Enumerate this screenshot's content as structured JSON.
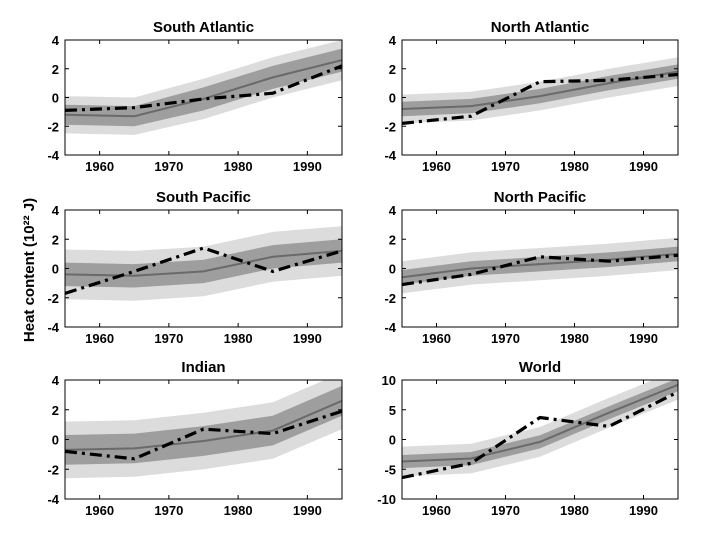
{
  "figure": {
    "ylabel": "Heat content (10²² J)"
  },
  "style": {
    "outer_band": "#dcdcdc",
    "inner_band": "#9e9e9e",
    "model_line": "#6a6a6a",
    "observed_line": "#000000",
    "axes": "#000000"
  },
  "chart_data": [
    {
      "type": "line",
      "title": "South Atlantic",
      "xlim": [
        1955,
        1995
      ],
      "ylim": [
        -4,
        4
      ],
      "xticks": [
        1960,
        1970,
        1980,
        1990
      ],
      "yticks": [
        -4,
        -2,
        0,
        2,
        4
      ],
      "x": [
        1955,
        1965,
        1975,
        1985,
        1995
      ],
      "model_mean": [
        -1.2,
        -1.3,
        -0.1,
        1.4,
        2.6
      ],
      "inner_band": {
        "lower": [
          -1.9,
          -2.0,
          -0.9,
          0.6,
          1.8
        ],
        "upper": [
          -0.5,
          -0.6,
          0.7,
          2.2,
          3.4
        ]
      },
      "outer_band": {
        "lower": [
          -2.5,
          -2.6,
          -1.5,
          0.0,
          1.2
        ],
        "upper": [
          0.1,
          0.0,
          1.3,
          2.8,
          4.0
        ]
      },
      "observed": {
        "x": [
          1955,
          1965,
          1975,
          1985,
          1995
        ],
        "y": [
          -0.9,
          -0.7,
          -0.1,
          0.3,
          2.2
        ]
      }
    },
    {
      "type": "line",
      "title": "North Atlantic",
      "xlim": [
        1955,
        1995
      ],
      "ylim": [
        -4,
        4
      ],
      "xticks": [
        1960,
        1970,
        1980,
        1990
      ],
      "yticks": [
        -4,
        -2,
        0,
        2,
        4
      ],
      "x": [
        1955,
        1965,
        1975,
        1985,
        1995
      ],
      "model_mean": [
        -0.8,
        -0.6,
        0.1,
        1.0,
        1.8
      ],
      "inner_band": {
        "lower": [
          -1.3,
          -1.1,
          -0.4,
          0.5,
          1.3
        ],
        "upper": [
          -0.3,
          -0.1,
          0.6,
          1.5,
          2.3
        ]
      },
      "outer_band": {
        "lower": [
          -1.8,
          -1.6,
          -0.9,
          0.0,
          0.8
        ],
        "upper": [
          0.2,
          0.4,
          1.1,
          2.0,
          2.8
        ]
      },
      "observed": {
        "x": [
          1955,
          1965,
          1975,
          1985,
          1995
        ],
        "y": [
          -1.8,
          -1.3,
          1.1,
          1.2,
          1.6
        ]
      }
    },
    {
      "type": "line",
      "title": "South Pacific",
      "xlim": [
        1955,
        1995
      ],
      "ylim": [
        -4,
        4
      ],
      "xticks": [
        1960,
        1970,
        1980,
        1990
      ],
      "yticks": [
        -4,
        -2,
        0,
        2,
        4
      ],
      "x": [
        1955,
        1965,
        1975,
        1985,
        1995
      ],
      "model_mean": [
        -0.4,
        -0.5,
        -0.2,
        0.8,
        1.2
      ],
      "inner_band": {
        "lower": [
          -1.2,
          -1.3,
          -1.0,
          0.0,
          0.4
        ],
        "upper": [
          0.4,
          0.3,
          0.6,
          1.6,
          2.0
        ]
      },
      "outer_band": {
        "lower": [
          -2.1,
          -2.2,
          -1.9,
          -0.9,
          -0.5
        ],
        "upper": [
          1.3,
          1.2,
          1.5,
          2.5,
          2.9
        ]
      },
      "observed": {
        "x": [
          1955,
          1965,
          1975,
          1985,
          1995
        ],
        "y": [
          -1.7,
          -0.2,
          1.4,
          -0.2,
          1.2
        ]
      }
    },
    {
      "type": "line",
      "title": "North Pacific",
      "xlim": [
        1955,
        1995
      ],
      "ylim": [
        -4,
        4
      ],
      "xticks": [
        1960,
        1970,
        1980,
        1990
      ],
      "yticks": [
        -4,
        -2,
        0,
        2,
        4
      ],
      "x": [
        1955,
        1965,
        1975,
        1985,
        1995
      ],
      "model_mean": [
        -0.6,
        0.0,
        0.3,
        0.6,
        1.0
      ],
      "inner_band": {
        "lower": [
          -1.1,
          -0.5,
          -0.2,
          0.1,
          0.5
        ],
        "upper": [
          -0.1,
          0.5,
          0.8,
          1.1,
          1.5
        ]
      },
      "outer_band": {
        "lower": [
          -1.7,
          -1.1,
          -0.8,
          -0.5,
          -0.1
        ],
        "upper": [
          0.5,
          1.1,
          1.4,
          1.7,
          2.1
        ]
      },
      "observed": {
        "x": [
          1955,
          1965,
          1975,
          1985,
          1995
        ],
        "y": [
          -1.1,
          -0.4,
          0.8,
          0.5,
          0.9
        ]
      }
    },
    {
      "type": "line",
      "title": "Indian",
      "xlim": [
        1955,
        1995
      ],
      "ylim": [
        -4,
        4
      ],
      "xticks": [
        1960,
        1970,
        1980,
        1990
      ],
      "yticks": [
        -4,
        -2,
        0,
        2,
        4
      ],
      "x": [
        1955,
        1965,
        1975,
        1985,
        1995
      ],
      "model_mean": [
        -0.7,
        -0.6,
        -0.1,
        0.6,
        2.6
      ],
      "inner_band": {
        "lower": [
          -1.7,
          -1.6,
          -1.1,
          -0.4,
          1.6
        ],
        "upper": [
          0.3,
          0.4,
          0.9,
          1.6,
          3.6
        ]
      },
      "outer_band": {
        "lower": [
          -2.6,
          -2.5,
          -2.0,
          -1.3,
          0.7
        ],
        "upper": [
          1.2,
          1.3,
          1.8,
          2.5,
          4.5
        ]
      },
      "observed": {
        "x": [
          1955,
          1965,
          1975,
          1985,
          1995
        ],
        "y": [
          -0.8,
          -1.3,
          0.7,
          0.4,
          1.9
        ]
      }
    },
    {
      "type": "line",
      "title": "World",
      "xlim": [
        1955,
        1995
      ],
      "ylim": [
        -10,
        10
      ],
      "xticks": [
        1960,
        1970,
        1980,
        1990
      ],
      "yticks": [
        -10,
        -5,
        0,
        5,
        10
      ],
      "x": [
        1955,
        1965,
        1975,
        1985,
        1995
      ],
      "model_mean": [
        -3.7,
        -3.2,
        -0.4,
        4.5,
        9.2
      ],
      "inner_band": {
        "lower": [
          -4.8,
          -4.3,
          -1.5,
          3.4,
          8.1
        ],
        "upper": [
          -2.6,
          -2.1,
          0.7,
          5.6,
          10.3
        ]
      },
      "outer_band": {
        "lower": [
          -6.2,
          -5.7,
          -2.9,
          2.0,
          6.7
        ],
        "upper": [
          -1.2,
          -0.7,
          2.1,
          7.0,
          11.7
        ]
      },
      "observed": {
        "x": [
          1955,
          1965,
          1975,
          1985,
          1995
        ],
        "y": [
          -6.4,
          -4.0,
          3.7,
          2.2,
          8.0
        ]
      }
    }
  ]
}
